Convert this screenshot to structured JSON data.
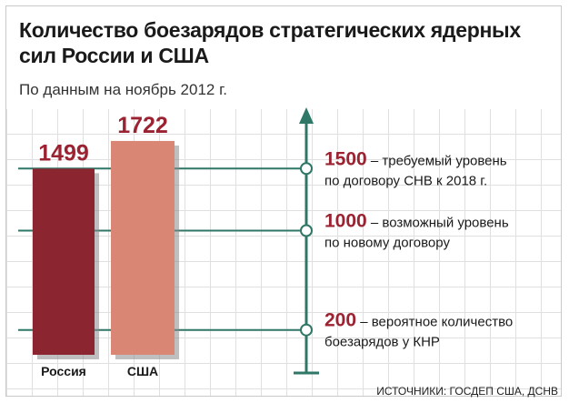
{
  "title": "Количество боезарядов стратегических ядерных сил России и США",
  "subtitle": "По данным на ноябрь 2012 г.",
  "source": "ИСТОЧНИКИ: ГОСДЕП США, ДСНВ",
  "colors": {
    "russia": "#8b2630",
    "usa": "#d98674",
    "accent": "#9b2231",
    "axis": "#2f7767"
  },
  "chart_data": {
    "type": "bar",
    "categories": [
      "Россия",
      "США"
    ],
    "values": [
      1499,
      1722
    ],
    "value_labels": [
      "1499",
      "1722"
    ],
    "ylim": [
      0,
      1800
    ],
    "annotations": [
      {
        "value": 1500,
        "value_label": "1500",
        "line1": "– требуемый уровень",
        "line2": "по договору СНВ к 2018 г."
      },
      {
        "value": 1000,
        "value_label": "1000",
        "line1": "– возможный уровень",
        "line2": "по новому договору"
      },
      {
        "value": 200,
        "value_label": "200",
        "line1": "– вероятное количество",
        "line2": "боезарядов у КНР"
      }
    ]
  }
}
